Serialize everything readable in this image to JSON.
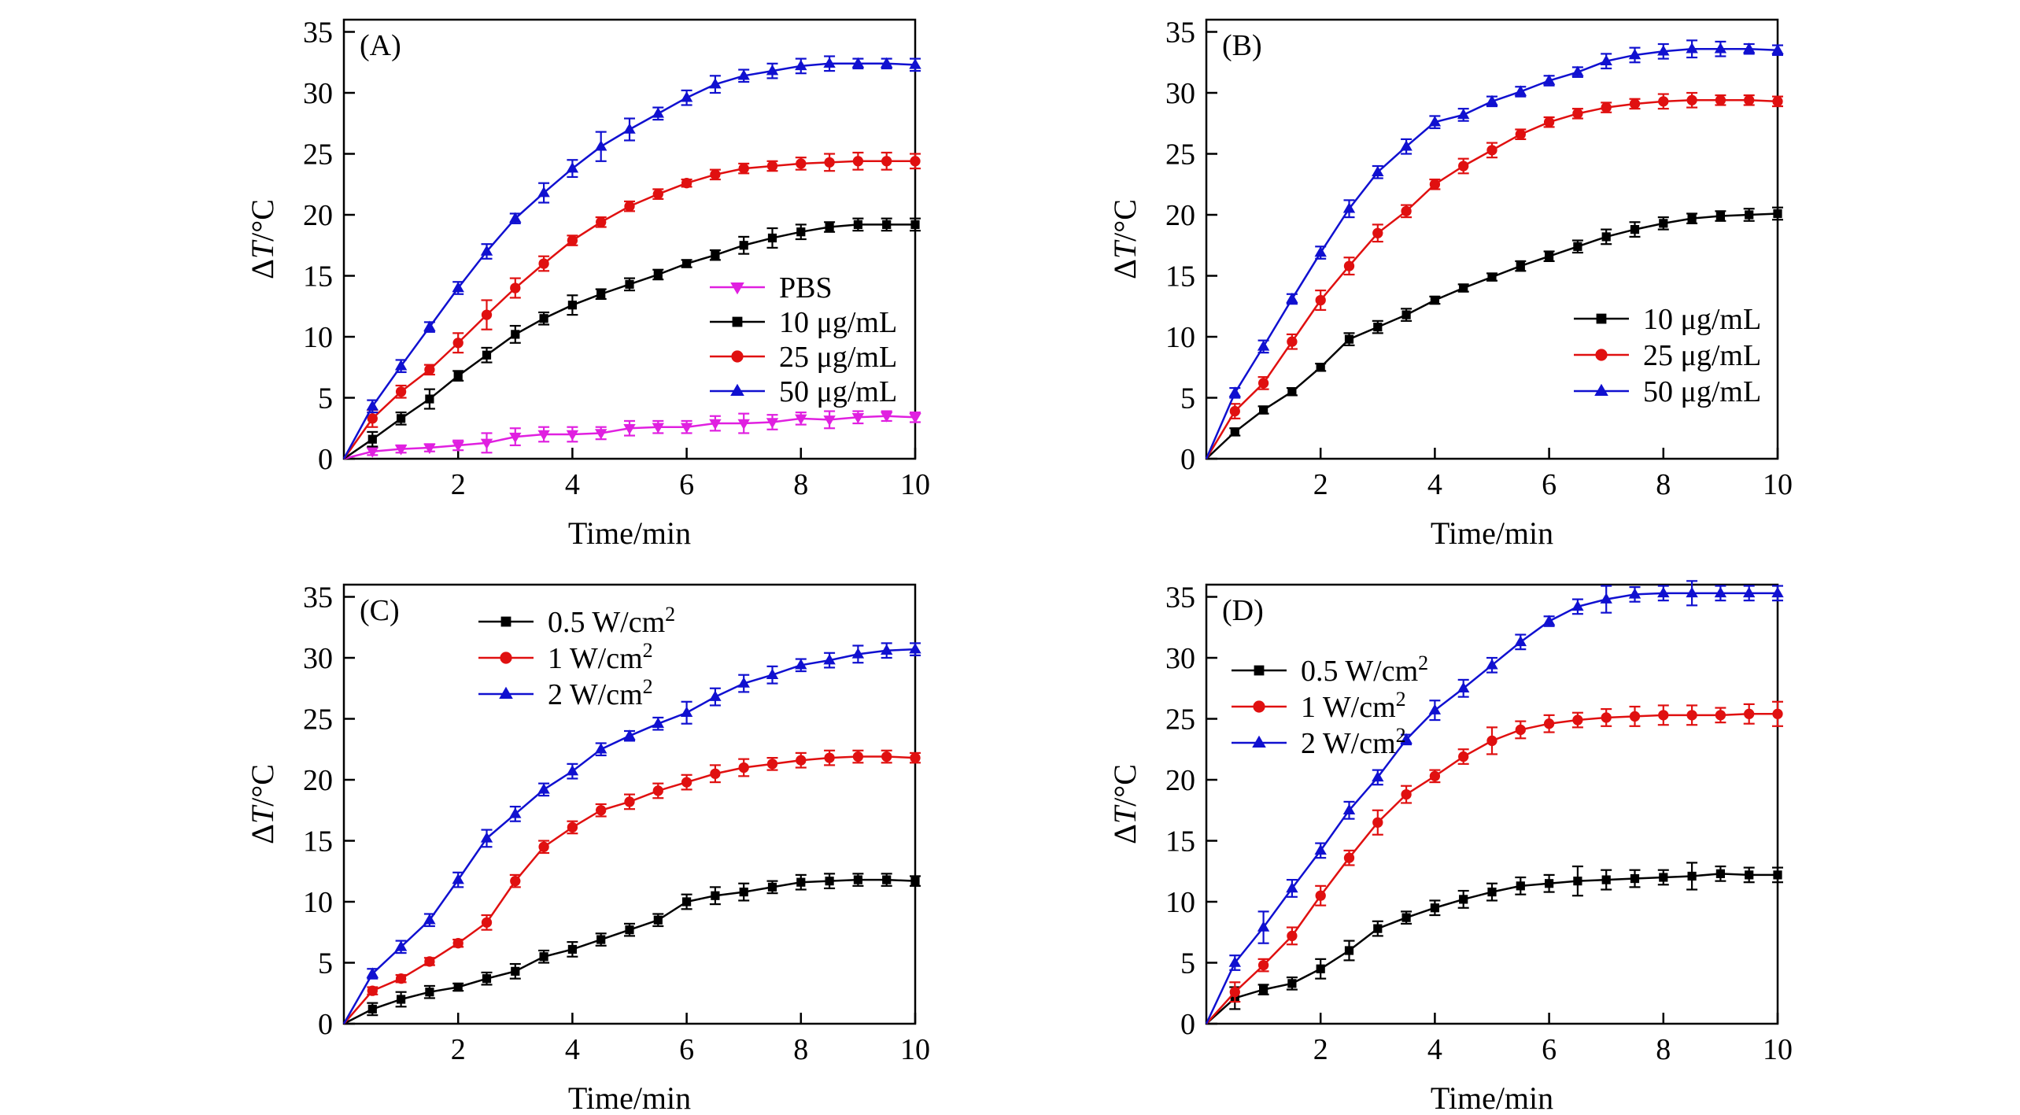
{
  "chart_data": [
    {
      "type": "line",
      "panel_label": "(A)",
      "xlabel": "Time/min",
      "ylabel": "ΔT/°C",
      "xlim": [
        0,
        10
      ],
      "ylim": [
        0,
        36
      ],
      "xticks": [
        2,
        4,
        6,
        8,
        10
      ],
      "yticks": [
        0,
        5,
        10,
        15,
        20,
        25,
        30,
        35
      ],
      "legend_position": "center-right",
      "x": [
        0,
        0.5,
        1,
        1.5,
        2,
        2.5,
        3,
        3.5,
        4,
        4.5,
        5,
        5.5,
        6,
        6.5,
        7,
        7.5,
        8,
        8.5,
        9,
        9.5,
        10
      ],
      "series": [
        {
          "name": "PBS",
          "color": "#e020e0",
          "marker": "triangle-down",
          "values": [
            0,
            0.6,
            0.8,
            0.9,
            1.1,
            1.3,
            1.8,
            2.0,
            2.0,
            2.1,
            2.5,
            2.6,
            2.6,
            2.9,
            2.9,
            3.0,
            3.3,
            3.2,
            3.4,
            3.5,
            3.4
          ],
          "errors": [
            0,
            0.3,
            0.3,
            0.3,
            0.4,
            0.8,
            0.7,
            0.6,
            0.6,
            0.5,
            0.6,
            0.5,
            0.5,
            0.6,
            0.8,
            0.6,
            0.5,
            0.7,
            0.5,
            0.4,
            0.4
          ]
        },
        {
          "name": "10 μg/mL",
          "color": "#000000",
          "marker": "square",
          "values": [
            0,
            1.6,
            3.3,
            4.9,
            6.8,
            8.5,
            10.2,
            11.5,
            12.6,
            13.5,
            14.3,
            15.1,
            16.0,
            16.7,
            17.5,
            18.1,
            18.6,
            19.0,
            19.2,
            19.2,
            19.2
          ],
          "errors": [
            0,
            0.6,
            0.5,
            0.8,
            0.4,
            0.6,
            0.7,
            0.5,
            0.8,
            0.4,
            0.5,
            0.4,
            0.3,
            0.4,
            0.7,
            0.8,
            0.6,
            0.4,
            0.5,
            0.5,
            0.5
          ]
        },
        {
          "name": "25 μg/mL",
          "color": "#e01010",
          "marker": "circle",
          "values": [
            0,
            3.3,
            5.5,
            7.3,
            9.5,
            11.8,
            14.0,
            16.0,
            17.9,
            19.4,
            20.7,
            21.7,
            22.6,
            23.3,
            23.8,
            24.0,
            24.2,
            24.3,
            24.4,
            24.4,
            24.4
          ],
          "errors": [
            0,
            0.7,
            0.5,
            0.4,
            0.8,
            1.2,
            0.8,
            0.6,
            0.4,
            0.4,
            0.4,
            0.4,
            0.3,
            0.4,
            0.4,
            0.4,
            0.5,
            0.7,
            0.7,
            0.7,
            0.6
          ]
        },
        {
          "name": "50 μg/mL",
          "color": "#1010d0",
          "marker": "triangle-up",
          "values": [
            0,
            4.3,
            7.6,
            10.8,
            14.0,
            17.0,
            19.7,
            21.8,
            23.8,
            25.6,
            27.0,
            28.3,
            29.6,
            30.7,
            31.4,
            31.8,
            32.2,
            32.4,
            32.4,
            32.4,
            32.3
          ],
          "errors": [
            0,
            0.5,
            0.5,
            0.4,
            0.5,
            0.6,
            0.4,
            0.8,
            0.7,
            1.2,
            0.9,
            0.5,
            0.6,
            0.7,
            0.5,
            0.6,
            0.6,
            0.6,
            0.4,
            0.4,
            0.5
          ]
        }
      ]
    },
    {
      "type": "line",
      "panel_label": "(B)",
      "xlabel": "Time/min",
      "ylabel": "ΔT/°C",
      "xlim": [
        0,
        10
      ],
      "ylim": [
        0,
        36
      ],
      "xticks": [
        2,
        4,
        6,
        8,
        10
      ],
      "yticks": [
        0,
        5,
        10,
        15,
        20,
        25,
        30,
        35
      ],
      "legend_position": "lower-right",
      "x": [
        0,
        0.5,
        1,
        1.5,
        2,
        2.5,
        3,
        3.5,
        4,
        4.5,
        5,
        5.5,
        6,
        6.5,
        7,
        7.5,
        8,
        8.5,
        9,
        9.5,
        10
      ],
      "series": [
        {
          "name": "10 μg/mL",
          "color": "#000000",
          "marker": "square",
          "values": [
            0,
            2.2,
            4.0,
            5.5,
            7.5,
            9.8,
            10.8,
            11.8,
            13.0,
            14.0,
            14.9,
            15.8,
            16.6,
            17.4,
            18.2,
            18.8,
            19.3,
            19.7,
            19.9,
            20.0,
            20.1
          ],
          "errors": [
            0,
            0.3,
            0.3,
            0.3,
            0.3,
            0.5,
            0.5,
            0.5,
            0.3,
            0.3,
            0.3,
            0.4,
            0.4,
            0.5,
            0.6,
            0.6,
            0.5,
            0.4,
            0.4,
            0.5,
            0.5
          ]
        },
        {
          "name": "25 μg/mL",
          "color": "#e01010",
          "marker": "circle",
          "values": [
            0,
            3.9,
            6.2,
            9.6,
            13.0,
            15.8,
            18.5,
            20.3,
            22.5,
            24.0,
            25.3,
            26.6,
            27.6,
            28.3,
            28.8,
            29.1,
            29.3,
            29.4,
            29.4,
            29.4,
            29.3
          ],
          "errors": [
            0,
            0.6,
            0.5,
            0.6,
            0.8,
            0.7,
            0.7,
            0.5,
            0.4,
            0.6,
            0.6,
            0.4,
            0.4,
            0.4,
            0.4,
            0.4,
            0.6,
            0.6,
            0.4,
            0.4,
            0.4
          ]
        },
        {
          "name": "50 μg/mL",
          "color": "#1010d0",
          "marker": "triangle-up",
          "values": [
            0,
            5.4,
            9.2,
            13.1,
            16.9,
            20.5,
            23.5,
            25.6,
            27.6,
            28.2,
            29.3,
            30.1,
            31.0,
            31.7,
            32.6,
            33.1,
            33.4,
            33.6,
            33.6,
            33.6,
            33.5
          ],
          "errors": [
            0,
            0.4,
            0.5,
            0.4,
            0.5,
            0.7,
            0.5,
            0.6,
            0.5,
            0.5,
            0.4,
            0.4,
            0.4,
            0.4,
            0.6,
            0.6,
            0.6,
            0.7,
            0.6,
            0.4,
            0.4
          ]
        }
      ]
    },
    {
      "type": "line",
      "panel_label": "(C)",
      "xlabel": "Time/min",
      "ylabel": "ΔT/°C",
      "xlim": [
        0,
        10
      ],
      "ylim": [
        0,
        36
      ],
      "xticks": [
        2,
        4,
        6,
        8,
        10
      ],
      "yticks": [
        0,
        5,
        10,
        15,
        20,
        25,
        30,
        35
      ],
      "legend_position": "top-left",
      "x": [
        0,
        0.5,
        1,
        1.5,
        2,
        2.5,
        3,
        3.5,
        4,
        4.5,
        5,
        5.5,
        6,
        6.5,
        7,
        7.5,
        8,
        8.5,
        9,
        9.5,
        10
      ],
      "series": [
        {
          "name": "0.5 W/cm",
          "superscript": "2",
          "color": "#000000",
          "marker": "square",
          "values": [
            0,
            1.2,
            2.0,
            2.6,
            3.0,
            3.7,
            4.3,
            5.5,
            6.1,
            6.9,
            7.7,
            8.5,
            10.0,
            10.5,
            10.8,
            11.2,
            11.6,
            11.7,
            11.8,
            11.8,
            11.7
          ],
          "errors": [
            0,
            0.5,
            0.6,
            0.5,
            0.3,
            0.5,
            0.6,
            0.5,
            0.6,
            0.5,
            0.5,
            0.5,
            0.6,
            0.7,
            0.7,
            0.5,
            0.6,
            0.6,
            0.5,
            0.5,
            0.4
          ]
        },
        {
          "name": "1 W/cm",
          "superscript": "2",
          "color": "#e01010",
          "marker": "circle",
          "values": [
            0,
            2.7,
            3.7,
            5.1,
            6.6,
            8.3,
            11.7,
            14.5,
            16.1,
            17.5,
            18.2,
            19.1,
            19.8,
            20.5,
            21.0,
            21.3,
            21.6,
            21.8,
            21.9,
            21.9,
            21.8
          ],
          "errors": [
            0,
            0.3,
            0.3,
            0.3,
            0.3,
            0.6,
            0.5,
            0.5,
            0.5,
            0.5,
            0.6,
            0.6,
            0.6,
            0.7,
            0.7,
            0.5,
            0.6,
            0.6,
            0.5,
            0.5,
            0.4
          ]
        },
        {
          "name": "2 W/cm",
          "superscript": "2",
          "color": "#1010d0",
          "marker": "triangle-up",
          "values": [
            0,
            4.1,
            6.3,
            8.5,
            11.8,
            15.2,
            17.2,
            19.2,
            20.7,
            22.5,
            23.6,
            24.6,
            25.5,
            26.8,
            27.9,
            28.6,
            29.4,
            29.8,
            30.3,
            30.6,
            30.7
          ],
          "errors": [
            0,
            0.4,
            0.5,
            0.5,
            0.6,
            0.7,
            0.6,
            0.5,
            0.6,
            0.5,
            0.4,
            0.5,
            0.9,
            0.7,
            0.7,
            0.7,
            0.5,
            0.6,
            0.7,
            0.6,
            0.5
          ]
        }
      ]
    },
    {
      "type": "line",
      "panel_label": "(D)",
      "xlabel": "Time/min",
      "ylabel": "ΔT/°C",
      "xlim": [
        0,
        10
      ],
      "ylim": [
        0,
        36
      ],
      "xticks": [
        2,
        4,
        6,
        8,
        10
      ],
      "yticks": [
        0,
        5,
        10,
        15,
        20,
        25,
        30,
        35
      ],
      "legend_position": "top-left",
      "x": [
        0,
        0.5,
        1,
        1.5,
        2,
        2.5,
        3,
        3.5,
        4,
        4.5,
        5,
        5.5,
        6,
        6.5,
        7,
        7.5,
        8,
        8.5,
        9,
        9.5,
        10
      ],
      "series": [
        {
          "name": "0.5 W/cm",
          "superscript": "2",
          "color": "#000000",
          "marker": "square",
          "values": [
            0,
            2.1,
            2.8,
            3.3,
            4.5,
            6.0,
            7.8,
            8.7,
            9.5,
            10.2,
            10.8,
            11.3,
            11.5,
            11.7,
            11.8,
            11.9,
            12.0,
            12.1,
            12.3,
            12.2,
            12.2
          ],
          "errors": [
            0,
            0.9,
            0.4,
            0.5,
            0.8,
            0.8,
            0.6,
            0.5,
            0.6,
            0.7,
            0.7,
            0.7,
            0.7,
            1.2,
            0.8,
            0.7,
            0.6,
            1.1,
            0.6,
            0.6,
            0.6
          ]
        },
        {
          "name": "1 W/cm",
          "superscript": "2",
          "color": "#e01010",
          "marker": "circle",
          "values": [
            0,
            2.6,
            4.8,
            7.2,
            10.5,
            13.6,
            16.5,
            18.8,
            20.3,
            21.9,
            23.2,
            24.1,
            24.6,
            24.9,
            25.1,
            25.2,
            25.3,
            25.3,
            25.3,
            25.4,
            25.4
          ],
          "errors": [
            0,
            0.8,
            0.5,
            0.7,
            0.8,
            0.6,
            1.0,
            0.7,
            0.5,
            0.6,
            1.1,
            0.7,
            0.7,
            0.6,
            0.7,
            0.8,
            0.8,
            0.8,
            0.6,
            0.8,
            1.0
          ]
        },
        {
          "name": "2 W/cm",
          "superscript": "2",
          "color": "#1010d0",
          "marker": "triangle-up",
          "values": [
            0,
            5.0,
            7.9,
            11.1,
            14.2,
            17.5,
            20.2,
            23.3,
            25.7,
            27.5,
            29.4,
            31.3,
            33.0,
            34.2,
            34.8,
            35.2,
            35.3,
            35.3,
            35.3,
            35.3,
            35.3
          ],
          "errors": [
            0,
            0.6,
            1.3,
            0.7,
            0.6,
            0.7,
            0.6,
            0.4,
            0.8,
            0.7,
            0.6,
            0.6,
            0.4,
            0.6,
            1.1,
            0.6,
            0.6,
            1.0,
            0.6,
            0.6,
            0.6
          ]
        }
      ]
    }
  ]
}
